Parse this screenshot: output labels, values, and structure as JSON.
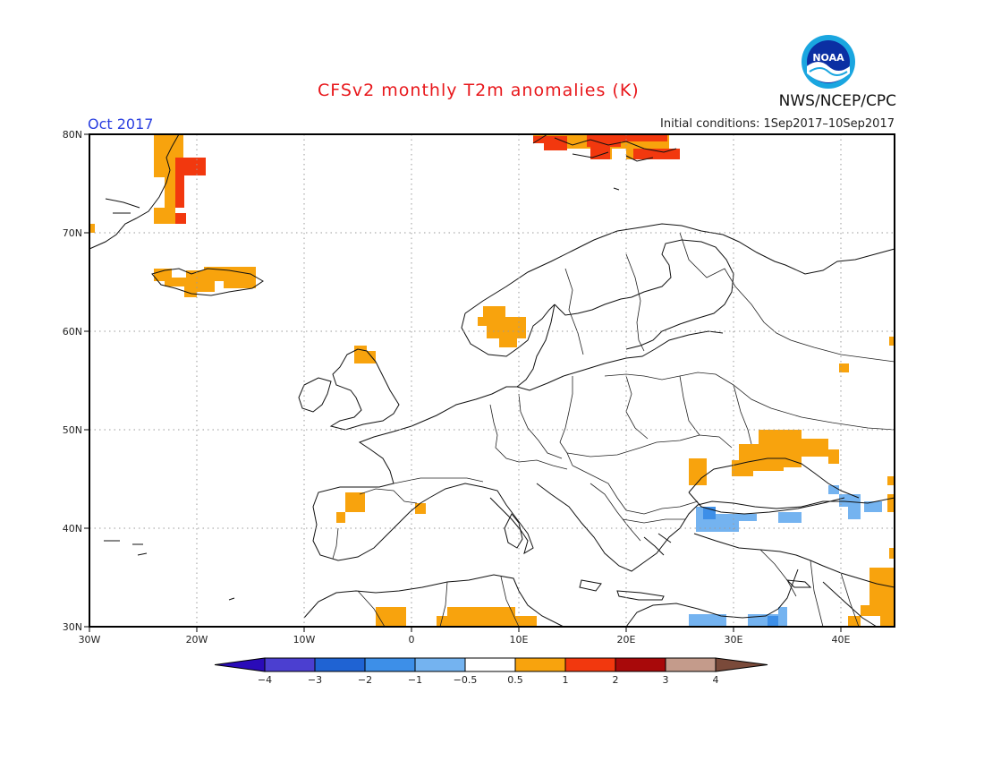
{
  "header": {
    "title": "CFSv2 monthly T2m anomalies (K)",
    "month": "Oct 2017",
    "initial_conditions": "Initial conditions: 1Sep2017–10Sep2017",
    "agency": "NWS/NCEP/CPC",
    "logo_text": "NOAA"
  },
  "map": {
    "lon_range": [
      -30,
      45
    ],
    "lat_range": [
      30,
      80
    ],
    "lat_labels": [
      "30N",
      "40N",
      "50N",
      "60N",
      "70N",
      "80N"
    ],
    "lon_labels": [
      "30W",
      "20W",
      "10W",
      "0",
      "10E",
      "20E",
      "30E",
      "40E"
    ],
    "grid": "dotted"
  },
  "colorbar": {
    "labels": [
      "-4",
      "-3",
      "-2",
      "-1",
      "-0.5",
      "0.5",
      "1",
      "2",
      "3",
      "4"
    ],
    "colors": [
      "#2a0bb8",
      "#4b3fd0",
      "#1f63d3",
      "#3d8fe8",
      "#74b3f0",
      "#ffffff",
      "#f8a30d",
      "#f2380e",
      "#a8090a",
      "#c49b8b",
      "#7a4a3a"
    ]
  },
  "anomaly_regions": [
    {
      "name": "greenland-east",
      "level": "1 to 2"
    },
    {
      "name": "svalbard",
      "level": "1 to 3"
    },
    {
      "name": "iceland",
      "level": "0.5 to 1"
    },
    {
      "name": "scandinavia-west",
      "level": "0.5 to 1"
    },
    {
      "name": "scotland",
      "level": "0.5 to 1"
    },
    {
      "name": "ukraine-black-sea",
      "level": "0.5 to 1"
    },
    {
      "name": "turkey-north",
      "level": "-1 to -0.5"
    },
    {
      "name": "north-africa",
      "level": "0.5 to 1"
    },
    {
      "name": "middle-east",
      "level": "0.5 to 1"
    }
  ]
}
